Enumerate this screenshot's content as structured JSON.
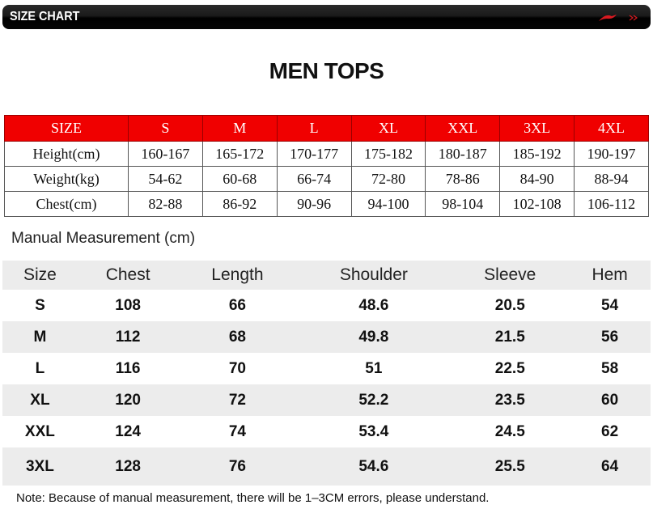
{
  "header": {
    "title": "SIZE CHART",
    "brand_color": "#d71920",
    "logo": "li-ning-logo"
  },
  "page_title": "MEN TOPS",
  "size_table": {
    "header": [
      "SIZE",
      "S",
      "M",
      "L",
      "XL",
      "XXL",
      "3XL",
      "4XL"
    ],
    "rows": [
      [
        "Height(cm)",
        "160-167",
        "165-172",
        "170-177",
        "175-182",
        "180-187",
        "185-192",
        "190-197"
      ],
      [
        "Weight(kg)",
        "54-62",
        "60-68",
        "66-74",
        "72-80",
        "78-86",
        "84-90",
        "88-94"
      ],
      [
        "Chest(cm)",
        "82-88",
        "86-92",
        "90-96",
        "94-100",
        "98-104",
        "102-108",
        "106-112"
      ]
    ],
    "header_color": "#f00000"
  },
  "manual": {
    "title": "Manual Measurement (cm)",
    "header": [
      "Size",
      "Chest",
      "Length",
      "Shoulder",
      "Sleeve",
      "Hem"
    ],
    "rows": [
      [
        "S",
        "108",
        "66",
        "48.6",
        "20.5",
        "54"
      ],
      [
        "M",
        "112",
        "68",
        "49.8",
        "21.5",
        "56"
      ],
      [
        "L",
        "116",
        "70",
        "51",
        "22.5",
        "58"
      ],
      [
        "XL",
        "120",
        "72",
        "52.2",
        "23.5",
        "60"
      ],
      [
        "XXL",
        "124",
        "74",
        "53.4",
        "24.5",
        "62"
      ],
      [
        "3XL",
        "128",
        "76",
        "54.6",
        "25.5",
        "64"
      ]
    ],
    "stripe_color": "#ececec"
  },
  "note": "Note: Because of manual measurement, there will be 1–3CM errors, please understand."
}
